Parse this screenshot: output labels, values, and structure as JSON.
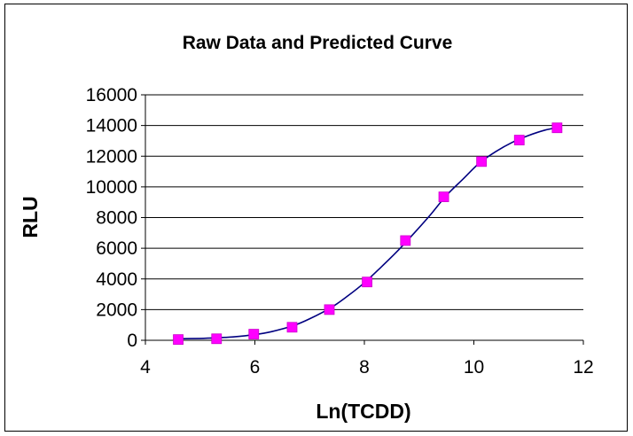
{
  "chart_data": {
    "type": "scatter",
    "title": "Raw Data and Predicted Curve",
    "xlabel": "Ln(TCDD)",
    "ylabel": "RLU",
    "xlim": [
      4,
      12
    ],
    "ylim": [
      0,
      16000
    ],
    "x_ticks": [
      4,
      6,
      8,
      10,
      12
    ],
    "y_ticks": [
      0,
      2000,
      4000,
      6000,
      8000,
      10000,
      12000,
      14000,
      16000
    ],
    "grid": "horizontal",
    "legend": "none",
    "series": [
      {
        "kind": "markers",
        "marker": "square",
        "color": "#ff00ff",
        "x": [
          4.6,
          5.3,
          5.98,
          6.68,
          7.36,
          8.05,
          8.75,
          9.45,
          10.14,
          10.83,
          11.52
        ],
        "y": [
          50,
          100,
          400,
          850,
          2000,
          3800,
          6500,
          9350,
          11650,
          13050,
          13850
        ]
      },
      {
        "kind": "line",
        "color": "#000080",
        "x": [
          4.6,
          5.0,
          5.3,
          5.6,
          6.0,
          6.3,
          6.7,
          7.0,
          7.4,
          7.7,
          8.0,
          8.3,
          8.6,
          8.9,
          9.2,
          9.5,
          9.8,
          10.1,
          10.4,
          10.7,
          11.0,
          11.3,
          11.52
        ],
        "y": [
          100,
          120,
          160,
          220,
          370,
          560,
          950,
          1400,
          2150,
          2900,
          3750,
          4750,
          5800,
          6950,
          8150,
          9450,
          10500,
          11550,
          12300,
          12900,
          13350,
          13700,
          13850
        ]
      }
    ]
  }
}
